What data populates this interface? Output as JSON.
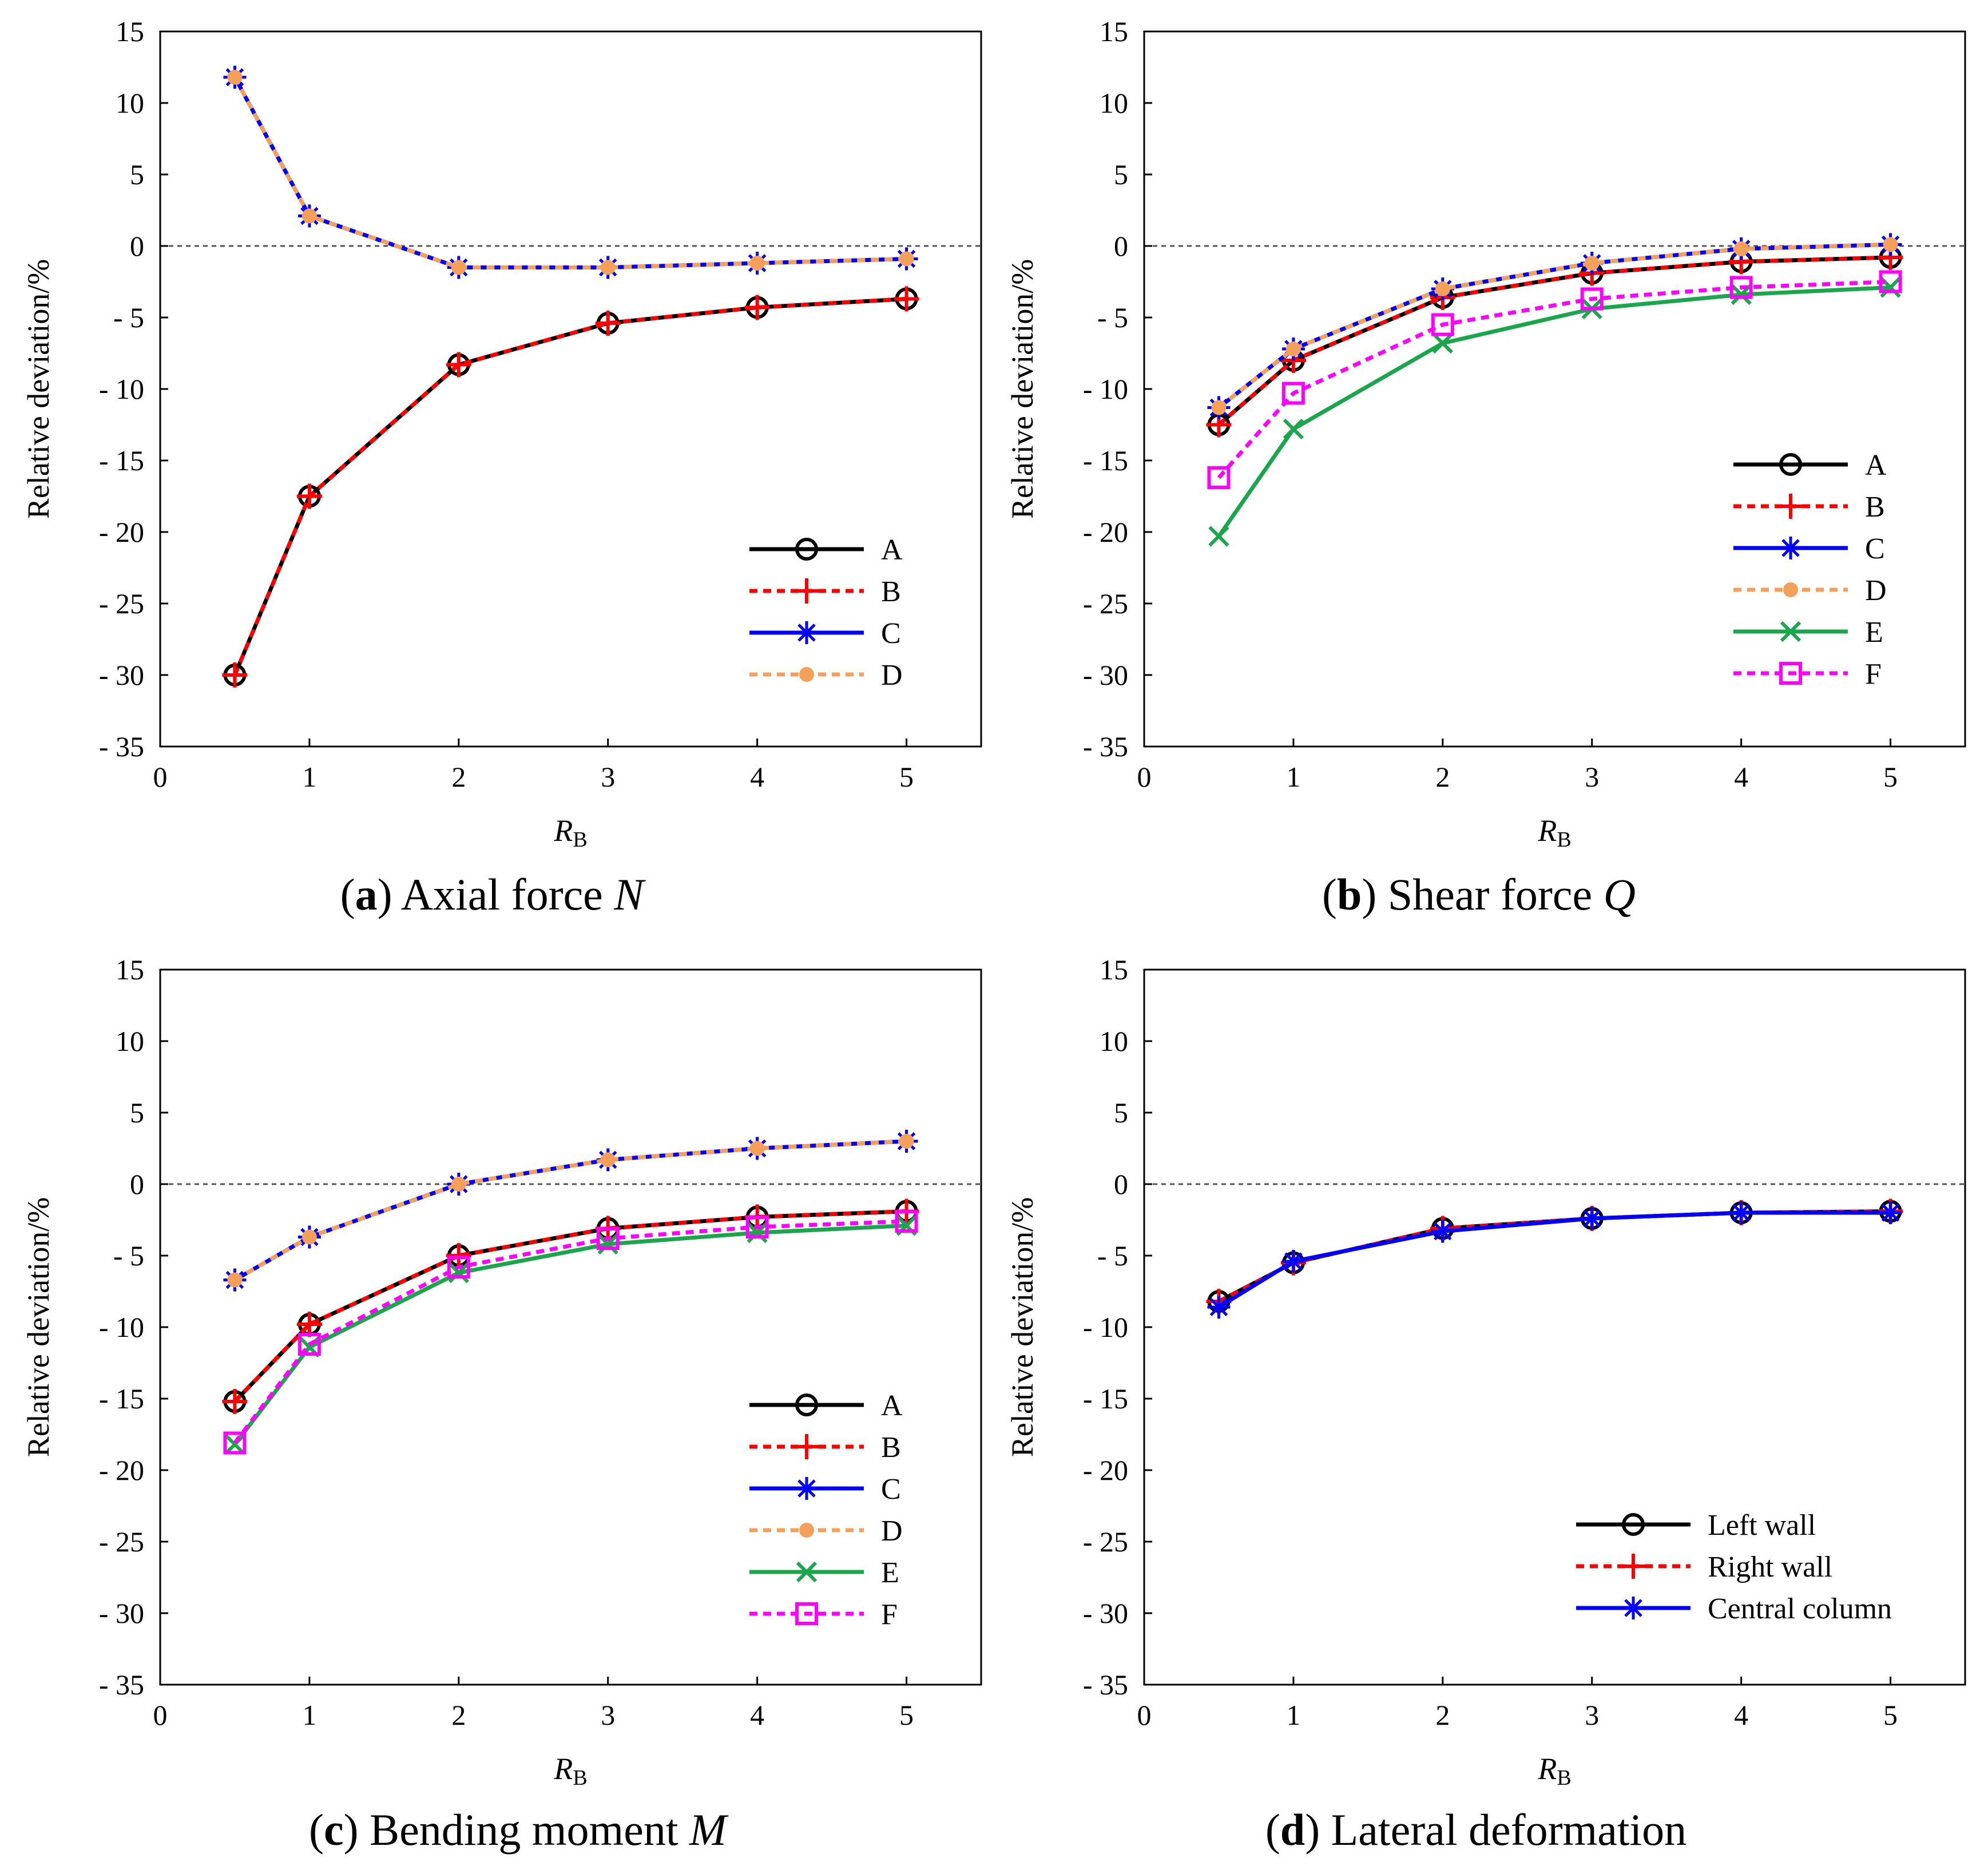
{
  "chart_data": [
    {
      "type": "line",
      "caption": {
        "letter": "a",
        "text": "Axial force",
        "symbol": "N"
      },
      "ylabel": "Relative deviation/%",
      "xlabel": {
        "base": "R",
        "sub": "B"
      },
      "xlim": [
        0,
        5.5
      ],
      "ylim": [
        -35,
        15
      ],
      "xticks": [
        "0",
        "1",
        "2",
        "3",
        "4",
        "5"
      ],
      "yticks": [
        "15",
        "10",
        "5",
        "0",
        "- 5",
        "- 10",
        "- 15",
        "- 20",
        "- 25",
        "- 30",
        "- 35"
      ],
      "x": [
        0.5,
        1,
        2,
        3,
        4,
        5
      ],
      "legend": "bottom-right",
      "series": [
        {
          "name": "A",
          "values": [
            -30,
            -17.5,
            -8.3,
            -5.4,
            -4.3,
            -3.7
          ],
          "color": "#000000",
          "dash": false,
          "marker": "circle"
        },
        {
          "name": "B",
          "values": [
            -30,
            -17.5,
            -8.3,
            -5.4,
            -4.3,
            -3.7
          ],
          "color": "#ff0000",
          "dash": true,
          "marker": "plus"
        },
        {
          "name": "C",
          "values": [
            11.8,
            2.1,
            -1.5,
            -1.5,
            -1.2,
            -0.9
          ],
          "color": "#0000ff",
          "dash": false,
          "marker": "star"
        },
        {
          "name": "D",
          "values": [
            11.8,
            2.1,
            -1.5,
            -1.5,
            -1.2,
            -0.9
          ],
          "color": "#f4a05a",
          "dash": true,
          "marker": "dot"
        }
      ]
    },
    {
      "type": "line",
      "caption": {
        "letter": "b",
        "text": "Shear force",
        "symbol": "Q"
      },
      "ylabel": "Relative deviation/%",
      "xlabel": {
        "base": "R",
        "sub": "B"
      },
      "xlim": [
        0,
        5.5
      ],
      "ylim": [
        -35,
        15
      ],
      "xticks": [
        "0",
        "1",
        "2",
        "3",
        "4",
        "5"
      ],
      "yticks": [
        "15",
        "10",
        "5",
        "0",
        "- 5",
        "- 10",
        "- 15",
        "- 20",
        "- 25",
        "- 30",
        "- 35"
      ],
      "x": [
        0.5,
        1,
        2,
        3,
        4,
        5
      ],
      "legend": "center-right",
      "series": [
        {
          "name": "A",
          "values": [
            -12.5,
            -8.0,
            -3.6,
            -1.9,
            -1.1,
            -0.8
          ],
          "color": "#000000",
          "dash": false,
          "marker": "circle"
        },
        {
          "name": "B",
          "values": [
            -12.5,
            -8.0,
            -3.6,
            -1.9,
            -1.1,
            -0.8
          ],
          "color": "#ff0000",
          "dash": true,
          "marker": "plus"
        },
        {
          "name": "C",
          "values": [
            -11.3,
            -7.2,
            -3.0,
            -1.2,
            -0.2,
            0.1
          ],
          "color": "#0000ff",
          "dash": false,
          "marker": "star"
        },
        {
          "name": "D",
          "values": [
            -11.3,
            -7.2,
            -3.0,
            -1.2,
            -0.2,
            0.1
          ],
          "color": "#f4a05a",
          "dash": true,
          "marker": "dot"
        },
        {
          "name": "E",
          "values": [
            -20.3,
            -12.8,
            -6.8,
            -4.4,
            -3.4,
            -2.9
          ],
          "color": "#1aa64a",
          "dash": false,
          "marker": "cross"
        },
        {
          "name": "F",
          "values": [
            -16.2,
            -10.3,
            -5.5,
            -3.7,
            -2.9,
            -2.5
          ],
          "color": "#ff00ff",
          "dash": true,
          "marker": "square"
        }
      ]
    },
    {
      "type": "line",
      "caption": {
        "letter": "c",
        "text": "Bending moment",
        "symbol": "M"
      },
      "ylabel": "Relative deviation/%",
      "xlabel": {
        "base": "R",
        "sub": "B"
      },
      "xlim": [
        0,
        5.5
      ],
      "ylim": [
        -35,
        15
      ],
      "xticks": [
        "0",
        "1",
        "2",
        "3",
        "4",
        "5"
      ],
      "yticks": [
        "15",
        "10",
        "5",
        "0",
        "- 5",
        "- 10",
        "- 15",
        "- 20",
        "- 25",
        "- 30",
        "- 35"
      ],
      "x": [
        0.5,
        1,
        2,
        3,
        4,
        5
      ],
      "legend": "bottom-right",
      "series": [
        {
          "name": "A",
          "values": [
            -15.2,
            -9.8,
            -5.0,
            -3.1,
            -2.3,
            -1.9
          ],
          "color": "#000000",
          "dash": false,
          "marker": "circle"
        },
        {
          "name": "B",
          "values": [
            -15.2,
            -9.8,
            -5.0,
            -3.1,
            -2.3,
            -1.9
          ],
          "color": "#ff0000",
          "dash": true,
          "marker": "plus"
        },
        {
          "name": "C",
          "values": [
            -6.7,
            -3.7,
            0.0,
            1.7,
            2.5,
            3.0
          ],
          "color": "#0000ff",
          "dash": false,
          "marker": "star"
        },
        {
          "name": "D",
          "values": [
            -6.7,
            -3.7,
            0.0,
            1.7,
            2.5,
            3.0
          ],
          "color": "#f4a05a",
          "dash": true,
          "marker": "dot"
        },
        {
          "name": "E",
          "values": [
            -18.2,
            -11.4,
            -6.2,
            -4.2,
            -3.4,
            -2.9
          ],
          "color": "#1aa64a",
          "dash": false,
          "marker": "cross"
        },
        {
          "name": "F",
          "values": [
            -18.1,
            -11.2,
            -5.8,
            -3.8,
            -3.0,
            -2.6
          ],
          "color": "#ff00ff",
          "dash": true,
          "marker": "square"
        }
      ]
    },
    {
      "type": "line",
      "caption": {
        "letter": "d",
        "text": "Lateral deformation",
        "symbol": ""
      },
      "ylabel": "Relative deviation/%",
      "xlabel": {
        "base": "R",
        "sub": "B"
      },
      "xlim": [
        0,
        5.5
      ],
      "ylim": [
        -35,
        15
      ],
      "xticks": [
        "0",
        "1",
        "2",
        "3",
        "4",
        "5"
      ],
      "yticks": [
        "15",
        "10",
        "5",
        "0",
        "- 5",
        "- 10",
        "- 15",
        "- 20",
        "- 25",
        "- 30",
        "- 35"
      ],
      "x": [
        0.5,
        1,
        2,
        3,
        4,
        5
      ],
      "legend": "bottom-right",
      "series": [
        {
          "name": "Left wall",
          "values": [
            -8.2,
            -5.5,
            -3.1,
            -2.4,
            -2.0,
            -1.9
          ],
          "color": "#000000",
          "dash": false,
          "marker": "circle"
        },
        {
          "name": "Right wall",
          "values": [
            -8.2,
            -5.5,
            -3.1,
            -2.4,
            -2.0,
            -1.9
          ],
          "color": "#ff0000",
          "dash": true,
          "marker": "plus"
        },
        {
          "name": "Central column",
          "values": [
            -8.6,
            -5.4,
            -3.3,
            -2.4,
            -2.0,
            -2.0
          ],
          "color": "#0000ff",
          "dash": false,
          "marker": "star"
        }
      ]
    }
  ]
}
